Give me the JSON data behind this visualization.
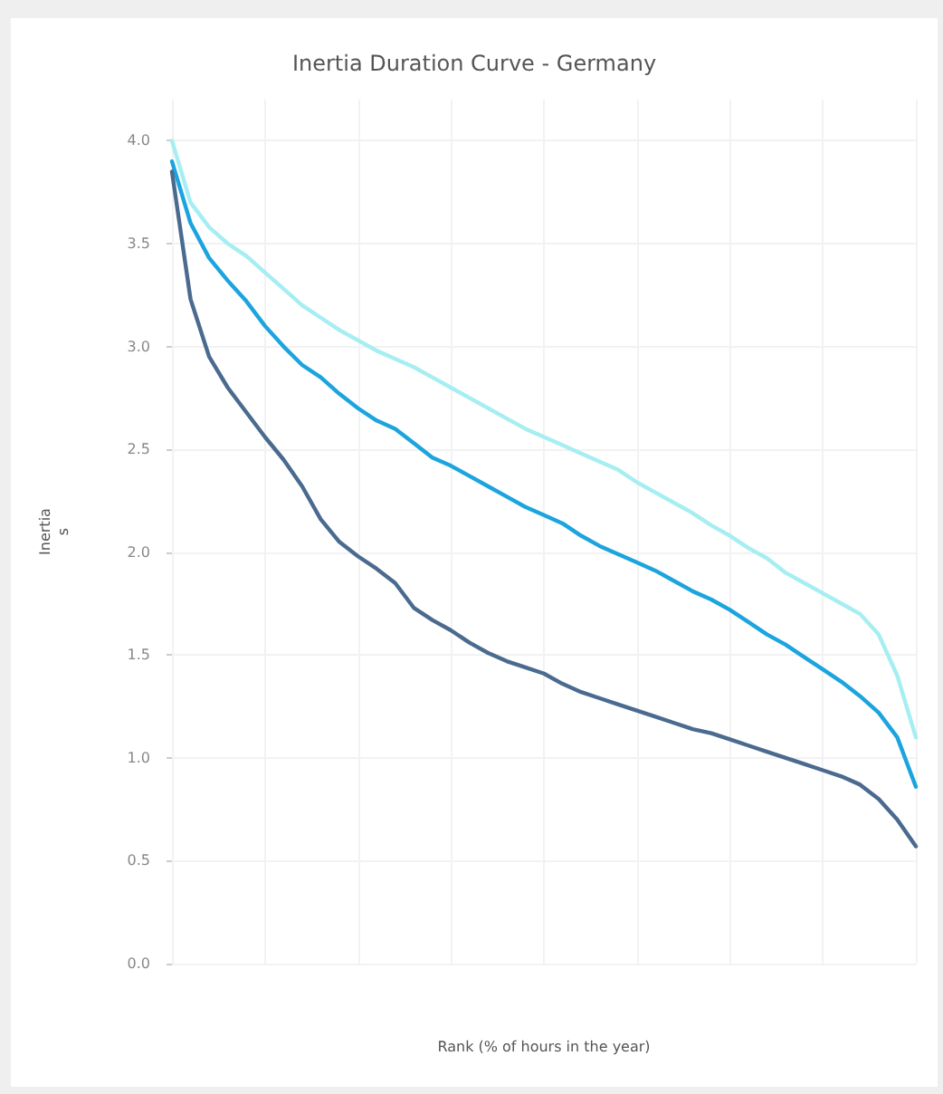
{
  "chart_data": {
    "type": "line",
    "title": "Inertia Duration Curve - Germany",
    "xlabel": "Rank (% of hours in the year)",
    "ylabel": "Inertia\ns",
    "categories": [
      null,
      null,
      null,
      null,
      null,
      null,
      null,
      null,
      null,
      null,
      null,
      null,
      null,
      null,
      null,
      null,
      null,
      null,
      null,
      null,
      null,
      null,
      null,
      null,
      null,
      null,
      null,
      null,
      null,
      null,
      null,
      null,
      null,
      null,
      null,
      null,
      null,
      null,
      null,
      null,
      null
    ],
    "series": [
      {
        "color": "#a6eef2",
        "values": [
          4.0,
          3.7,
          3.58,
          3.5,
          3.44,
          3.36,
          3.28,
          3.2,
          3.14,
          3.08,
          3.03,
          2.98,
          2.94,
          2.9,
          2.85,
          2.8,
          2.75,
          2.7,
          2.65,
          2.6,
          2.56,
          2.52,
          2.48,
          2.44,
          2.4,
          2.34,
          2.29,
          2.24,
          2.19,
          2.13,
          2.08,
          2.02,
          1.97,
          1.9,
          1.85,
          1.8,
          1.75,
          1.7,
          1.6,
          1.4,
          1.1
        ]
      },
      {
        "color": "#1ca4de",
        "values": [
          3.9,
          3.6,
          3.43,
          3.32,
          3.22,
          3.1,
          3.0,
          2.91,
          2.85,
          2.77,
          2.7,
          2.64,
          2.6,
          2.53,
          2.46,
          2.42,
          2.37,
          2.32,
          2.27,
          2.22,
          2.18,
          2.14,
          2.08,
          2.03,
          1.99,
          1.95,
          1.91,
          1.86,
          1.81,
          1.77,
          1.72,
          1.66,
          1.6,
          1.55,
          1.49,
          1.43,
          1.37,
          1.3,
          1.22,
          1.1,
          0.86
        ]
      },
      {
        "color": "#4b6a8f",
        "values": [
          3.85,
          3.23,
          2.95,
          2.8,
          2.68,
          2.56,
          2.45,
          2.32,
          2.16,
          2.05,
          1.98,
          1.92,
          1.85,
          1.73,
          1.67,
          1.62,
          1.56,
          1.51,
          1.47,
          1.44,
          1.41,
          1.36,
          1.32,
          1.29,
          1.26,
          1.23,
          1.2,
          1.17,
          1.14,
          1.12,
          1.09,
          1.06,
          1.03,
          1.0,
          0.97,
          0.94,
          0.91,
          0.87,
          0.8,
          0.7,
          0.57
        ]
      }
    ],
    "ylim": [
      0,
      4.2
    ],
    "yticks": [
      {
        "value": 0,
        "label": "0.0"
      },
      {
        "value": 0.5,
        "label": "0.5"
      },
      {
        "value": 1,
        "label": "1.0"
      },
      {
        "value": 1.5,
        "label": "1.5"
      },
      {
        "value": 2,
        "label": "2.0"
      },
      {
        "value": 2.5,
        "label": "2.5"
      },
      {
        "value": 3,
        "label": "3.0"
      },
      {
        "value": 3.5,
        "label": "3.5"
      },
      {
        "value": 4,
        "label": "4.0"
      }
    ],
    "grid": true,
    "marker": "none",
    "line_style": "solid"
  }
}
